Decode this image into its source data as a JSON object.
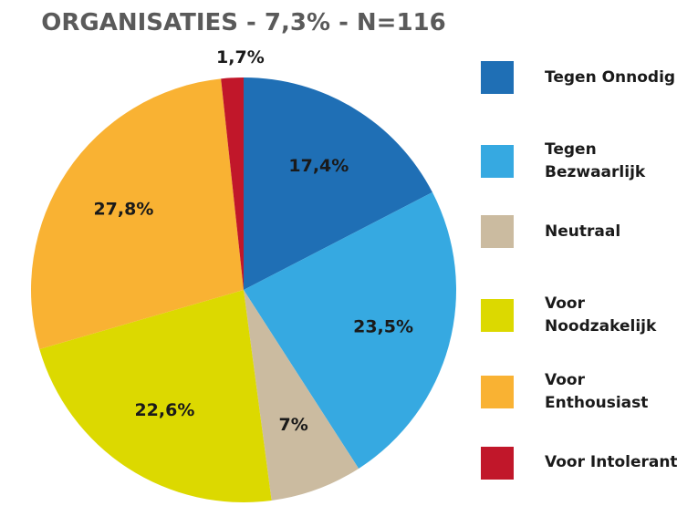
{
  "chart_data": {
    "type": "pie",
    "title": "ORGANISATIES - 7,3% - N=116",
    "categories": [
      "Tegen Onnodig",
      "Tegen Bezwaarlijk",
      "Neutraal",
      "Voor Noodzakelijk",
      "Voor Enthousiast",
      "Voor Intolerant"
    ],
    "values": [
      17.4,
      23.5,
      7,
      22.6,
      27.8,
      1.7
    ],
    "value_labels": [
      "17,4%",
      "23,5%",
      "7%",
      "22,6%",
      "27,8%",
      "1,7%"
    ],
    "colors": [
      "#1f6fb5",
      "#36a9e1",
      "#cbbba0",
      "#dcd900",
      "#f9b233",
      "#c1172a"
    ],
    "legend": "right"
  }
}
